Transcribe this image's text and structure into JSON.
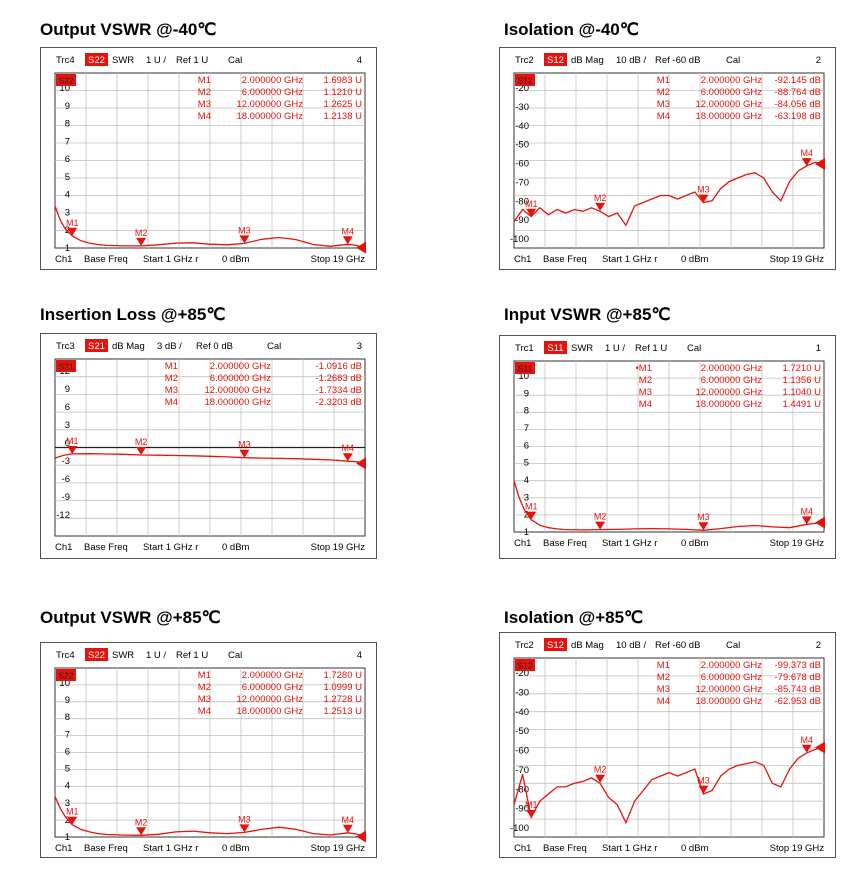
{
  "colors": {
    "trace": "#e8120c",
    "grid": "#c0c0c0",
    "text": "#000000",
    "badge_bg": "#e8120c",
    "badge_text": "#ffffff"
  },
  "footer_common": {
    "ch": "Ch1",
    "mode": "Base Freq",
    "start": "Start 1 GHz r",
    "power": "0 dBm",
    "stop": "Stop 19 GHz"
  },
  "panels": [
    {
      "title": "Output VSWR @-40℃",
      "header": {
        "trc": "Trc4",
        "param": "S22",
        "fmt": "SWR",
        "scale": "1 U /",
        "ref": "Ref 1 U",
        "cal": "Cal",
        "num": "4"
      },
      "markers": [
        {
          "name": "M1",
          "freq": "2.000000 GHz",
          "value": "1.6983 U"
        },
        {
          "name": "M2",
          "freq": "6.000000 GHz",
          "value": "1.1210 U"
        },
        {
          "name": "M3",
          "freq": "12.000000 GHz",
          "value": "1.2625 U"
        },
        {
          "name": "M4",
          "freq": "18.000000 GHz",
          "value": "1.2138 U"
        }
      ],
      "y_tick_labels": [
        "10",
        "9",
        "8",
        "7",
        "6",
        "5",
        "4",
        "3",
        "2",
        "1"
      ],
      "badge_label": "S22"
    },
    {
      "title": "Isolation @-40℃",
      "header": {
        "trc": "Trc2",
        "param": "S12",
        "fmt": "dB Mag",
        "scale": "10 dB /",
        "ref": "Ref -60 dB",
        "cal": "Cal",
        "num": "2"
      },
      "markers": [
        {
          "name": "M1",
          "freq": "2.000000 GHz",
          "value": "-92.145 dB"
        },
        {
          "name": "M2",
          "freq": "6.000000 GHz",
          "value": "-88.764 dB"
        },
        {
          "name": "M3",
          "freq": "12.000000 GHz",
          "value": "-84.056 dB"
        },
        {
          "name": "M4",
          "freq": "18.000000 GHz",
          "value": "-63.198 dB"
        }
      ],
      "y_tick_labels": [
        "-20",
        "-30",
        "-40",
        "-50",
        "-60",
        "-70",
        "-80",
        "-90",
        "-100"
      ],
      "badge_label": "S12"
    },
    {
      "title": "Insertion Loss @+85℃",
      "header": {
        "trc": "Trc3",
        "param": "S21",
        "fmt": "dB Mag",
        "scale": "3 dB /",
        "ref": "Ref 0 dB",
        "cal": "Cal",
        "num": "3"
      },
      "markers": [
        {
          "name": "M1",
          "freq": "2.000000 GHz",
          "value": "-1.0916 dB"
        },
        {
          "name": "M2",
          "freq": "6.000000 GHz",
          "value": "-1.2683 dB"
        },
        {
          "name": "M3",
          "freq": "12.000000 GHz",
          "value": "-1.7334 dB"
        },
        {
          "name": "M4",
          "freq": "18.000000 GHz",
          "value": "-2.3203 dB"
        }
      ],
      "y_tick_labels": [
        "12",
        "9",
        "6",
        "3",
        "0",
        "-3",
        "-6",
        "-9",
        "-12"
      ],
      "badge_label": "S21"
    },
    {
      "title": "Input VSWR @+85℃",
      "header": {
        "trc": "Trc1",
        "param": "S11",
        "fmt": "SWR",
        "scale": "1 U /",
        "ref": "Ref 1 U",
        "cal": "Cal",
        "num": "1"
      },
      "markers": [
        {
          "name": "•M1",
          "freq": "2.000000 GHz",
          "value": "1.7210 U"
        },
        {
          "name": "M2",
          "freq": "6.000000 GHz",
          "value": "1.1356 U"
        },
        {
          "name": "M3",
          "freq": "12.000000 GHz",
          "value": "1.1040 U"
        },
        {
          "name": "M4",
          "freq": "18.000000 GHz",
          "value": "1.4491 U"
        }
      ],
      "y_tick_labels": [
        "10",
        "9",
        "8",
        "7",
        "6",
        "5",
        "4",
        "3",
        "2",
        "1"
      ],
      "badge_label": "S11"
    },
    {
      "title": "Output VSWR @+85℃",
      "header": {
        "trc": "Trc4",
        "param": "S22",
        "fmt": "SWR",
        "scale": "1 U /",
        "ref": "Ref 1 U",
        "cal": "Cal",
        "num": "4"
      },
      "markers": [
        {
          "name": "M1",
          "freq": "2.000000 GHz",
          "value": "1.7280 U"
        },
        {
          "name": "M2",
          "freq": "6.000000 GHz",
          "value": "1.0999 U"
        },
        {
          "name": "M3",
          "freq": "12.000000 GHz",
          "value": "1.2728 U"
        },
        {
          "name": "M4",
          "freq": "18.000000 GHz",
          "value": "1.2513 U"
        }
      ],
      "y_tick_labels": [
        "10",
        "9",
        "8",
        "7",
        "6",
        "5",
        "4",
        "3",
        "2",
        "1"
      ],
      "badge_label": "S22"
    },
    {
      "title": "Isolation @+85℃",
      "header": {
        "trc": "Trc2",
        "param": "S12",
        "fmt": "dB Mag",
        "scale": "10 dB /",
        "ref": "Ref -60 dB",
        "cal": "Cal",
        "num": "2"
      },
      "markers": [
        {
          "name": "M1",
          "freq": "2.000000 GHz",
          "value": "-99.373 dB"
        },
        {
          "name": "M2",
          "freq": "6.000000 GHz",
          "value": "-79.678 dB"
        },
        {
          "name": "M3",
          "freq": "12.000000 GHz",
          "value": "-85.743 dB"
        },
        {
          "name": "M4",
          "freq": "18.000000 GHz",
          "value": "-62.953 dB"
        }
      ],
      "y_tick_labels": [
        "-20",
        "-30",
        "-40",
        "-50",
        "-60",
        "-70",
        "-80",
        "-90",
        "-100"
      ],
      "badge_label": "S12"
    }
  ],
  "chart_data": [
    {
      "type": "line",
      "title": "Output VSWR @-40℃",
      "x_unit": "GHz",
      "xlim": [
        1,
        19
      ],
      "ylim": [
        1,
        11
      ],
      "series": [
        {
          "name": "S22",
          "x": [
            1,
            1.3,
            1.6,
            2,
            2.5,
            3,
            3.5,
            4,
            5,
            6,
            7,
            8,
            9,
            10,
            11,
            12,
            13,
            14,
            15,
            16,
            17,
            18,
            18.5,
            19
          ],
          "y": [
            3.4,
            2.6,
            2.1,
            1.7,
            1.42,
            1.28,
            1.2,
            1.15,
            1.12,
            1.12,
            1.18,
            1.28,
            1.3,
            1.22,
            1.18,
            1.26,
            1.5,
            1.6,
            1.48,
            1.2,
            1.1,
            1.21,
            1.15,
            1.02
          ]
        }
      ],
      "markers": [
        {
          "name": "M1",
          "x": 2,
          "y": 1.6983
        },
        {
          "name": "M2",
          "x": 6,
          "y": 1.121
        },
        {
          "name": "M3",
          "x": 12,
          "y": 1.2625
        },
        {
          "name": "M4",
          "x": 18,
          "y": 1.2138
        }
      ]
    },
    {
      "type": "line",
      "title": "Isolation @-40℃",
      "x_unit": "GHz",
      "xlim": [
        1,
        19
      ],
      "ylim": [
        -110,
        -10
      ],
      "series": [
        {
          "name": "S12",
          "x": [
            1,
            1.5,
            2,
            2.5,
            3,
            3.5,
            4,
            4.5,
            5,
            5.5,
            6,
            6.5,
            7,
            7.5,
            8,
            8.5,
            9,
            9.5,
            10,
            10.5,
            11,
            11.5,
            12,
            12.5,
            13,
            13.5,
            14,
            14.5,
            15,
            15.5,
            16,
            16.5,
            17,
            17.5,
            18,
            18.5,
            19
          ],
          "y": [
            -95,
            -88,
            -92,
            -87,
            -91,
            -88,
            -90,
            -88,
            -89,
            -87,
            -89,
            -92,
            -90,
            -97,
            -86,
            -84,
            -82,
            -80,
            -80,
            -82,
            -80,
            -78,
            -84,
            -83,
            -76,
            -72,
            -70,
            -68,
            -67,
            -70,
            -78,
            -83,
            -72,
            -66,
            -63,
            -61,
            -62
          ]
        }
      ],
      "markers": [
        {
          "name": "M1",
          "x": 2,
          "y": -92.145
        },
        {
          "name": "M2",
          "x": 6,
          "y": -88.764
        },
        {
          "name": "M3",
          "x": 12,
          "y": -84.056
        },
        {
          "name": "M4",
          "x": 18,
          "y": -63.198
        }
      ]
    },
    {
      "type": "line",
      "title": "Insertion Loss @+85℃",
      "x_unit": "GHz",
      "xlim": [
        1,
        19
      ],
      "ylim": [
        -15,
        15
      ],
      "series": [
        {
          "name": "S21",
          "x": [
            1,
            1.5,
            2,
            3,
            4,
            5,
            6,
            7,
            8,
            9,
            10,
            11,
            12,
            13,
            14,
            15,
            16,
            17,
            18,
            18.5,
            19
          ],
          "y": [
            -1.8,
            -1.3,
            -1.09,
            -1.05,
            -1.1,
            -1.15,
            -1.27,
            -1.3,
            -1.35,
            -1.4,
            -1.5,
            -1.6,
            -1.73,
            -1.8,
            -1.85,
            -1.9,
            -2.0,
            -2.1,
            -2.32,
            -2.4,
            -2.7
          ]
        }
      ],
      "markers": [
        {
          "name": "M1",
          "x": 2,
          "y": -1.0916
        },
        {
          "name": "M2",
          "x": 6,
          "y": -1.2683
        },
        {
          "name": "M3",
          "x": 12,
          "y": -1.7334
        },
        {
          "name": "M4",
          "x": 18,
          "y": -2.3203
        }
      ]
    },
    {
      "type": "line",
      "title": "Input VSWR @+85℃",
      "x_unit": "GHz",
      "xlim": [
        1,
        19
      ],
      "ylim": [
        1,
        11
      ],
      "series": [
        {
          "name": "S11",
          "x": [
            1,
            1.3,
            1.6,
            2,
            2.5,
            3,
            3.5,
            4,
            5,
            6,
            7,
            8,
            9,
            10,
            11,
            12,
            13,
            14,
            15,
            16,
            17,
            18,
            18.5,
            19
          ],
          "y": [
            4.0,
            3.0,
            2.3,
            1.72,
            1.4,
            1.25,
            1.18,
            1.14,
            1.12,
            1.14,
            1.15,
            1.18,
            1.2,
            1.18,
            1.15,
            1.1,
            1.2,
            1.32,
            1.38,
            1.3,
            1.25,
            1.45,
            1.5,
            1.55
          ]
        }
      ],
      "markers": [
        {
          "name": "M1",
          "x": 2,
          "y": 1.721
        },
        {
          "name": "M2",
          "x": 6,
          "y": 1.1356
        },
        {
          "name": "M3",
          "x": 12,
          "y": 1.104
        },
        {
          "name": "M4",
          "x": 18,
          "y": 1.4491
        }
      ]
    },
    {
      "type": "line",
      "title": "Output VSWR @+85℃",
      "x_unit": "GHz",
      "xlim": [
        1,
        19
      ],
      "ylim": [
        1,
        11
      ],
      "series": [
        {
          "name": "S22",
          "x": [
            1,
            1.3,
            1.6,
            2,
            2.5,
            3,
            3.5,
            4,
            5,
            6,
            7,
            8,
            9,
            10,
            11,
            12,
            13,
            14,
            15,
            16,
            17,
            18,
            18.5,
            19
          ],
          "y": [
            3.4,
            2.7,
            2.2,
            1.73,
            1.45,
            1.3,
            1.2,
            1.15,
            1.11,
            1.1,
            1.16,
            1.3,
            1.35,
            1.25,
            1.2,
            1.27,
            1.45,
            1.58,
            1.45,
            1.2,
            1.12,
            1.25,
            1.18,
            1.03
          ]
        }
      ],
      "markers": [
        {
          "name": "M1",
          "x": 2,
          "y": 1.728
        },
        {
          "name": "M2",
          "x": 6,
          "y": 1.0999
        },
        {
          "name": "M3",
          "x": 12,
          "y": 1.2728
        },
        {
          "name": "M4",
          "x": 18,
          "y": 1.2513
        }
      ]
    },
    {
      "type": "line",
      "title": "Isolation @+85℃",
      "x_unit": "GHz",
      "xlim": [
        1,
        19
      ],
      "ylim": [
        -110,
        -10
      ],
      "series": [
        {
          "name": "S12",
          "x": [
            1,
            1.5,
            2,
            2.5,
            3,
            3.5,
            4,
            4.5,
            5,
            5.5,
            6,
            6.5,
            7,
            7.5,
            8,
            8.5,
            9,
            9.5,
            10,
            10.5,
            11,
            11.5,
            12,
            12.5,
            13,
            13.5,
            14,
            14.5,
            15,
            15.5,
            16,
            16.5,
            17,
            17.5,
            18,
            18.5,
            19
          ],
          "y": [
            -92,
            -75,
            -99,
            -90,
            -86,
            -82,
            -82,
            -80,
            -79,
            -77,
            -80,
            -88,
            -92,
            -102,
            -90,
            -84,
            -78,
            -76,
            -74,
            -76,
            -74,
            -72,
            -86,
            -84,
            -76,
            -72,
            -70,
            -69,
            -68,
            -70,
            -80,
            -82,
            -72,
            -66,
            -63,
            -61,
            -60
          ]
        }
      ],
      "markers": [
        {
          "name": "M1",
          "x": 2,
          "y": -99.373
        },
        {
          "name": "M2",
          "x": 6,
          "y": -79.678
        },
        {
          "name": "M3",
          "x": 12,
          "y": -85.743
        },
        {
          "name": "M4",
          "x": 18,
          "y": -62.953
        }
      ]
    }
  ]
}
